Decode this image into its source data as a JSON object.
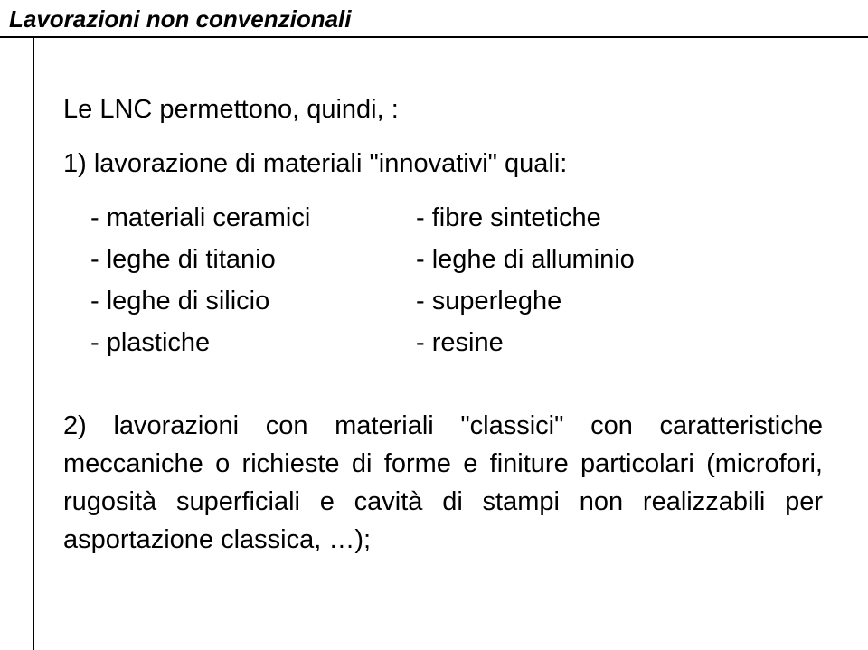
{
  "header": {
    "title": "Lavorazioni non convenzionali"
  },
  "intro": "Le LNC permettono, quindi, :",
  "point1": "1) lavorazione di materiali \"innovativi\" quali:",
  "materials": {
    "rows": [
      {
        "left": "- materiali ceramici",
        "right": "- fibre sintetiche"
      },
      {
        "left": "- leghe di titanio",
        "right": "- leghe di alluminio"
      },
      {
        "left": "- leghe di silicio",
        "right": "- superleghe"
      },
      {
        "left": "- plastiche",
        "right": "- resine"
      }
    ]
  },
  "point2": "2) lavorazioni con materiali \"classici\" con caratteristiche meccaniche o richieste di forme e finiture particolari (microfori, rugosità superficiali e cavità di stampi non realizzabili per asportazione classica, …);"
}
